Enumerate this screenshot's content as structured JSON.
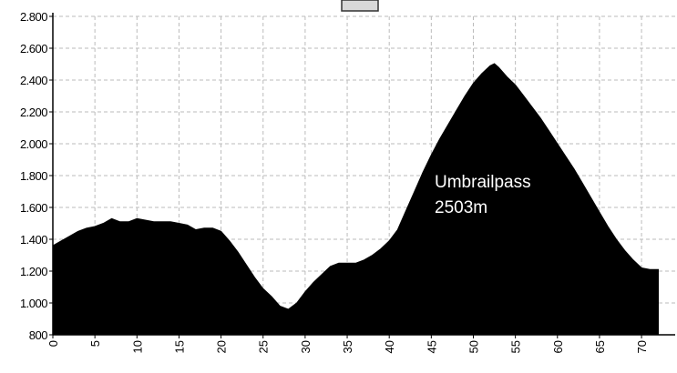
{
  "chart_data": {
    "type": "area",
    "annotations": [
      "Umbrailpass",
      "2503m"
    ],
    "series": [
      {
        "color": "#000000",
        "x": [
          0,
          1,
          2,
          3,
          4,
          5,
          6,
          7,
          8,
          9,
          10,
          11,
          12,
          13,
          14,
          15,
          16,
          17,
          18,
          19,
          20,
          21,
          22,
          23,
          24,
          25,
          26,
          27,
          28,
          29,
          30,
          31,
          32,
          33,
          34,
          35,
          36,
          37,
          38,
          39,
          40,
          41,
          42,
          43,
          44,
          45,
          46,
          47,
          48,
          49,
          50,
          51,
          52,
          52.5,
          53,
          54,
          55,
          56,
          57,
          58,
          59,
          60,
          61,
          62,
          63,
          64,
          65,
          66,
          67,
          68,
          69,
          70,
          71,
          72
        ],
        "values": [
          1360,
          1390,
          1420,
          1450,
          1470,
          1480,
          1500,
          1530,
          1510,
          1510,
          1530,
          1520,
          1510,
          1510,
          1510,
          1500,
          1490,
          1460,
          1470,
          1470,
          1450,
          1390,
          1320,
          1240,
          1160,
          1090,
          1040,
          980,
          960,
          1000,
          1070,
          1130,
          1180,
          1230,
          1250,
          1250,
          1250,
          1270,
          1300,
          1340,
          1390,
          1460,
          1580,
          1700,
          1820,
          1930,
          2030,
          2120,
          2210,
          2300,
          2380,
          2440,
          2490,
          2503,
          2480,
          2420,
          2370,
          2300,
          2230,
          2160,
          2080,
          2000,
          1920,
          1840,
          1750,
          1660,
          1570,
          1480,
          1400,
          1330,
          1270,
          1220,
          1210,
          1210
        ]
      }
    ],
    "xlim": [
      0,
      74
    ],
    "xticks": [
      0,
      5,
      10,
      15,
      20,
      25,
      30,
      35,
      40,
      45,
      50,
      55,
      60,
      65,
      70
    ],
    "ylim": [
      800,
      2800
    ],
    "yticks": [
      {
        "value": 800,
        "label": "800"
      },
      {
        "value": 1000,
        "label": "1.000"
      },
      {
        "value": 1200,
        "label": "1.200"
      },
      {
        "value": 1400,
        "label": "1.400"
      },
      {
        "value": 1600,
        "label": "1.600"
      },
      {
        "value": 1800,
        "label": "1.800"
      },
      {
        "value": 2000,
        "label": "2.000"
      },
      {
        "value": 2200,
        "label": "2.200"
      },
      {
        "value": 2400,
        "label": "2.400"
      },
      {
        "value": 2600,
        "label": "2.600"
      },
      {
        "value": 2800,
        "label": "2.800"
      }
    ],
    "grid": true
  }
}
